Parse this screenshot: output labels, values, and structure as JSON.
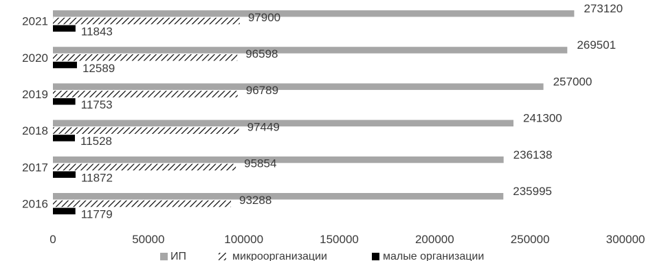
{
  "chart_data": {
    "type": "bar",
    "orientation": "horizontal",
    "categories": [
      "2021",
      "2020",
      "2019",
      "2018",
      "2017",
      "2016"
    ],
    "series": [
      {
        "name": "ИП",
        "values": [
          273120,
          269501,
          257000,
          241300,
          236138,
          235995
        ],
        "color": "#a6a6a6",
        "pattern": "solid"
      },
      {
        "name": "микроорганизации",
        "values": [
          97900,
          96598,
          96789,
          97449,
          95854,
          93288
        ],
        "color": "#000000",
        "pattern": "diagonal-hatch"
      },
      {
        "name": "малые организации",
        "values": [
          11843,
          12589,
          11753,
          11528,
          11872,
          11779
        ],
        "color": "#000000",
        "pattern": "solid"
      }
    ],
    "x_ticks": [
      "0",
      "50000",
      "100000",
      "150000",
      "200000",
      "250000",
      "300000"
    ],
    "xlim": [
      0,
      300000
    ],
    "grid": false,
    "legend_position": "bottom"
  }
}
